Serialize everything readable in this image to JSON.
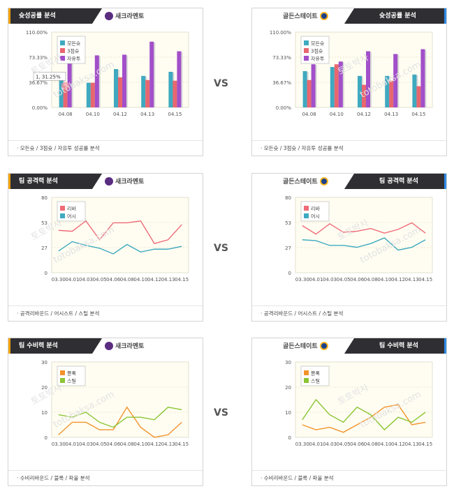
{
  "panels": [
    {
      "id": "p1",
      "header": "슛성공률 분석",
      "team": "새크라멘토",
      "team_logo": "kings-logo-icon",
      "side": "left",
      "footer": "·  모든슛 / 3점슛 / 자유투 성공률 분석"
    },
    {
      "id": "p2",
      "header": "슛성공률 분석",
      "team": "골든스테이트",
      "team_logo": "warriors-logo-icon",
      "side": "right",
      "footer": "·  모든슛 / 3점슛 / 자유투 성공률 분석"
    },
    {
      "id": "p3",
      "header": "팀 공격력 분석",
      "team": "새크라멘토",
      "team_logo": "kings-logo-icon",
      "side": "left",
      "footer": "·  공격리바운드 / 어시스트 / 스틸 분석"
    },
    {
      "id": "p4",
      "header": "팀 공격력 분석",
      "team": "골든스테이트",
      "team_logo": "warriors-logo-icon",
      "side": "right",
      "footer": "·  공격리바운드 / 어시스트 / 스틸 분석"
    },
    {
      "id": "p5",
      "header": "팀 수비력 분석",
      "team": "새크라멘토",
      "team_logo": "kings-logo-icon",
      "side": "left",
      "footer": "·  수비리바운드 / 블록 / 파울 분석"
    },
    {
      "id": "p6",
      "header": "팀 수비력 분석",
      "team": "골든스테이트",
      "team_logo": "warriors-logo-icon",
      "side": "right",
      "footer": "·  수비리바운드 / 블록 / 파울 분석"
    }
  ],
  "vs_label": "VS",
  "watermark": [
    "토토박사",
    "totobaksa.com"
  ],
  "chart_data": [
    {
      "type": "bar",
      "categories": [
        "04.08",
        "04.10",
        "04.12",
        "04.13",
        "04.15"
      ],
      "yticks": [
        "0.00%",
        "36.67%",
        "73.33%",
        "110.00%"
      ],
      "ylim": [
        0,
        110
      ],
      "series": [
        {
          "name": "모든슛",
          "color": "#3fa9c0",
          "values": [
            42,
            36,
            56,
            46,
            52
          ]
        },
        {
          "name": "3점슛",
          "color": "#e8676f",
          "values": [
            31.25,
            36,
            44,
            40,
            39
          ]
        },
        {
          "name": "자유투",
          "color": "#a24fc9",
          "values": [
            68,
            76,
            77,
            96,
            82
          ]
        }
      ],
      "tooltip": "1, 31.25%"
    },
    {
      "type": "bar",
      "categories": [
        "04.08",
        "04.10",
        "04.12",
        "04.13",
        "04.15"
      ],
      "yticks": [
        "0.00%",
        "36.67%",
        "73.33%",
        "110.00%"
      ],
      "ylim": [
        0,
        110
      ],
      "series": [
        {
          "name": "모든슛",
          "color": "#3fa9c0",
          "values": [
            53,
            59,
            46,
            46,
            48
          ]
        },
        {
          "name": "3점슛",
          "color": "#e8676f",
          "values": [
            40,
            63,
            33,
            39,
            31
          ]
        },
        {
          "name": "자유투",
          "color": "#a24fc9",
          "values": [
            63,
            67,
            82,
            78,
            85
          ]
        }
      ]
    },
    {
      "type": "line",
      "categories": [
        "03.30",
        "04.01",
        "04.03",
        "04.05",
        "04.06",
        "04.08",
        "04.10",
        "04.12",
        "04.13",
        "04.15"
      ],
      "yticks": [
        "0",
        "27",
        "53",
        "80"
      ],
      "ylim": [
        0,
        80
      ],
      "series": [
        {
          "name": "리바",
          "color": "#ef6b78",
          "values": [
            45,
            44,
            55,
            35,
            53,
            53,
            55,
            31,
            35,
            51
          ]
        },
        {
          "name": "어시",
          "color": "#3fa9c0",
          "values": [
            23,
            33,
            29,
            26,
            20,
            30,
            22,
            25,
            25,
            28
          ]
        }
      ]
    },
    {
      "type": "line",
      "categories": [
        "03.30",
        "04.01",
        "04.03",
        "04.05",
        "04.06",
        "04.08",
        "04.10",
        "04.12",
        "04.13",
        "04.15"
      ],
      "yticks": [
        "0",
        "27",
        "53",
        "80"
      ],
      "ylim": [
        0,
        80
      ],
      "series": [
        {
          "name": "리바",
          "color": "#ef6b78",
          "values": [
            50,
            41,
            52,
            43,
            44,
            47,
            42,
            46,
            53,
            42
          ]
        },
        {
          "name": "어시",
          "color": "#3fa9c0",
          "values": [
            35,
            34,
            29,
            29,
            27,
            31,
            37,
            24,
            27,
            35
          ]
        }
      ]
    },
    {
      "type": "line",
      "categories": [
        "03.30",
        "04.01",
        "04.03",
        "04.05",
        "04.06",
        "04.08",
        "04.10",
        "04.12",
        "04.13",
        "04.15"
      ],
      "yticks": [
        "0",
        "10",
        "20",
        "30"
      ],
      "ylim": [
        0,
        30
      ],
      "series": [
        {
          "name": "블록",
          "color": "#f2932b",
          "values": [
            1,
            6,
            6,
            3,
            3,
            12,
            4,
            0,
            1,
            6
          ]
        },
        {
          "name": "스틸",
          "color": "#8bc534",
          "values": [
            9,
            8,
            10,
            6,
            4,
            8,
            8,
            7,
            12,
            11
          ]
        }
      ]
    },
    {
      "type": "line",
      "categories": [
        "03.30",
        "04.01",
        "04.03",
        "04.05",
        "04.06",
        "04.08",
        "04.10",
        "04.12",
        "04.13",
        "04.15"
      ],
      "yticks": [
        "0",
        "10",
        "20",
        "30"
      ],
      "ylim": [
        0,
        30
      ],
      "series": [
        {
          "name": "블록",
          "color": "#f2932b",
          "values": [
            5,
            3,
            4,
            2,
            5,
            8,
            12,
            13,
            5,
            6
          ]
        },
        {
          "name": "스틸",
          "color": "#8bc534",
          "values": [
            7,
            15,
            9,
            6,
            12,
            9,
            3,
            8,
            6,
            10
          ]
        }
      ]
    }
  ]
}
